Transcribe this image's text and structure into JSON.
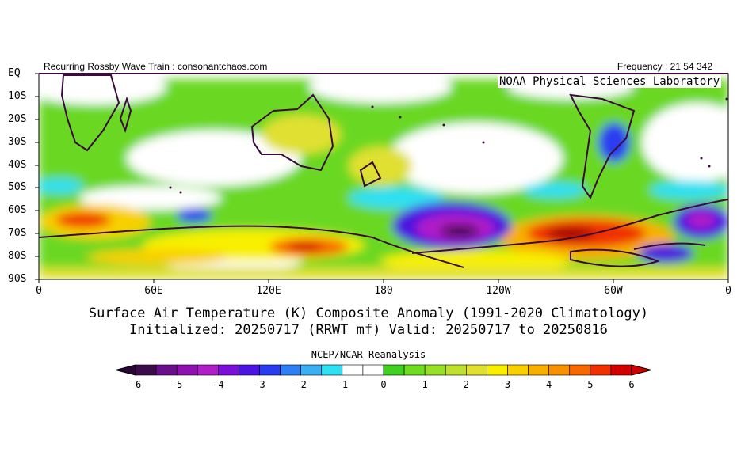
{
  "header": {
    "left_text": "Recurring Rossby Wave Train : consonantchaos.com",
    "right_text": "Frequency : 21 54 342",
    "watermark": "NOAA Physical Sciences Laboratory"
  },
  "map": {
    "y_ticks": [
      "EQ",
      "10S",
      "20S",
      "30S",
      "40S",
      "50S",
      "60S",
      "70S",
      "80S",
      "90S"
    ],
    "x_ticks": [
      "0",
      "60E",
      "120E",
      "180",
      "120W",
      "60W",
      "0"
    ]
  },
  "titles": {
    "line1": "Surface Air Temperature (K) Composite Anomaly (1991-2020 Climatology)",
    "line2": "Initialized: 20250717 (RRWT mf) Valid: 20250717 to 20250816"
  },
  "colorbar": {
    "source": "NCEP/NCAR Reanalysis",
    "labels": [
      "-6",
      "-5",
      "-4",
      "-3",
      "-2",
      "-1",
      "0",
      "1",
      "2",
      "3",
      "4",
      "5",
      "6"
    ],
    "colors": [
      "#3c0b4a",
      "#6a0f8c",
      "#8e12b0",
      "#b01ec8",
      "#7a10d8",
      "#4b14e0",
      "#2a3cf0",
      "#2e7ef4",
      "#3ab0f2",
      "#2fe0f0",
      "#ffffff",
      "#ffffff",
      "#40d020",
      "#70dc20",
      "#98e028",
      "#c0e030",
      "#e0e030",
      "#f8f000",
      "#f8d000",
      "#f8b000",
      "#f89000",
      "#f86800",
      "#f03000",
      "#d00000"
    ]
  }
}
